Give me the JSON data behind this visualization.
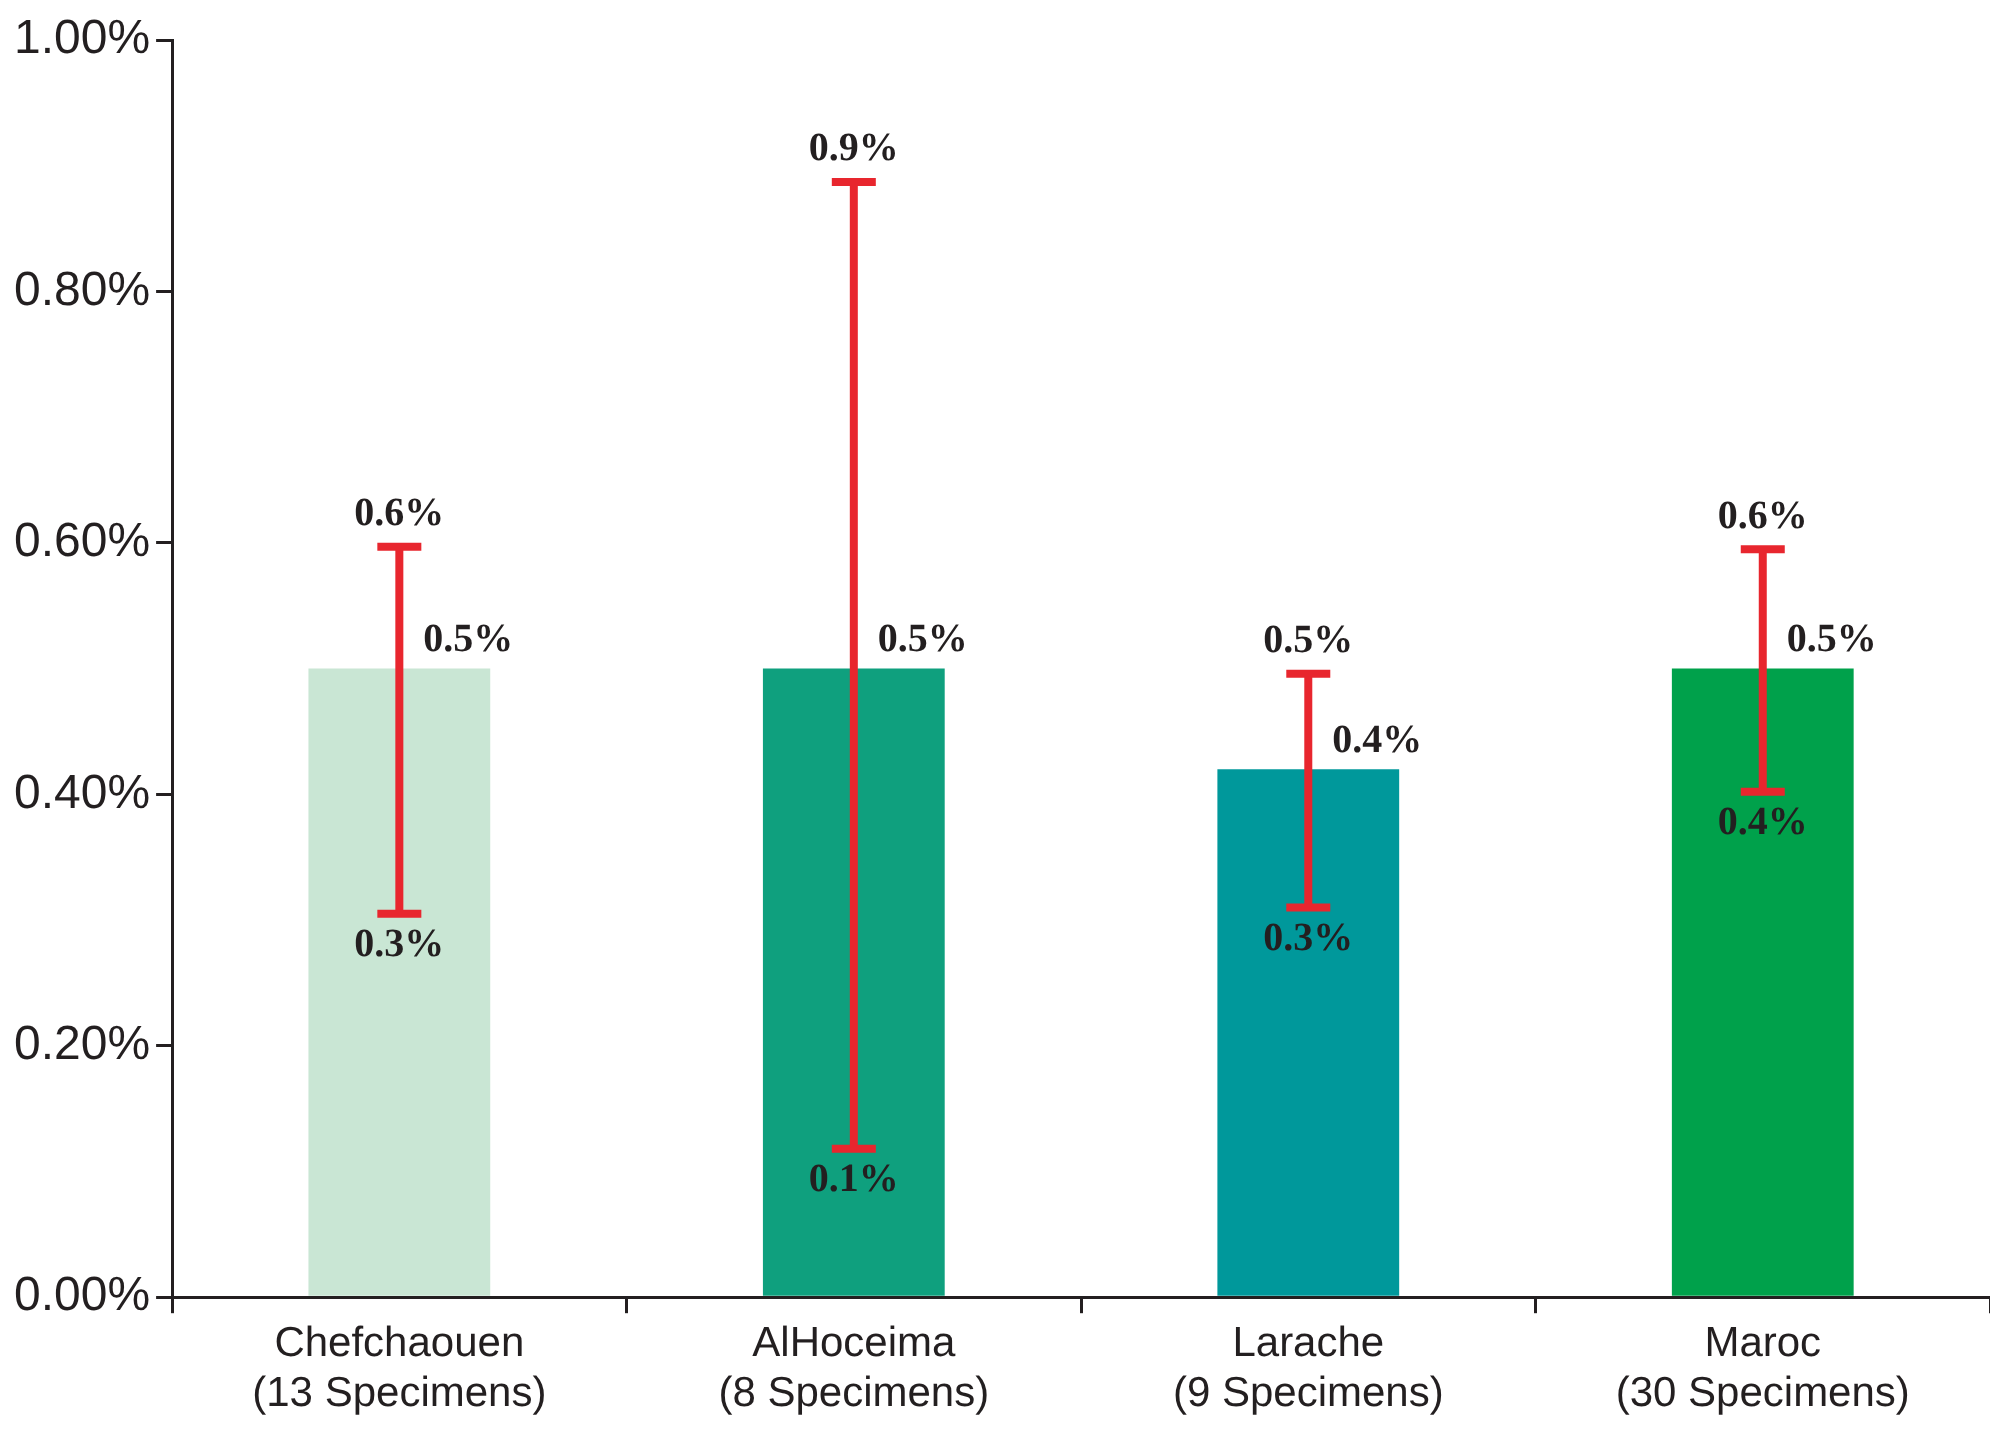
{
  "chart_data": {
    "type": "bar",
    "categories": [
      "Chefchaouen\n(13 Specimens)",
      "AlHoceima\n(8 Specimens)",
      "Larache\n(9 Specimens)",
      "Maroc\n(30 Specimens)"
    ],
    "values": [
      0.5,
      0.5,
      0.42,
      0.5
    ],
    "colors": [
      "#c9e6d4",
      "#0fa07e",
      "#00989b",
      "#00a14b"
    ],
    "value_labels": [
      "0.5%",
      "0.5%",
      "0.4%",
      "0.5%"
    ],
    "errors": [
      [
        0.305,
        0.597
      ],
      [
        0.118,
        0.887
      ],
      [
        0.31,
        0.496
      ],
      [
        0.402,
        0.595
      ]
    ],
    "ylim": [
      0,
      1
    ],
    "yticks": [
      {
        "value": 0,
        "label": "0.00%"
      },
      {
        "value": 0.2,
        "label": "0.20%"
      },
      {
        "value": 0.4,
        "label": "0.40%"
      },
      {
        "value": 0.6,
        "label": "0.60%"
      },
      {
        "value": 0.8,
        "label": "0.80%"
      },
      {
        "value": 1,
        "label": "1.00%"
      }
    ],
    "annotations": [
      {
        "text": "0.6%",
        "x": "Chefchaouen\n(13 Specimens)",
        "y": 0.597
      },
      {
        "text": "0.3%",
        "x": "Chefchaouen\n(13 Specimens)",
        "y": 0.305
      },
      {
        "text": "0.9%",
        "x": "AlHoceima\n(8 Specimens)",
        "y": 0.887
      },
      {
        "text": "0.1%",
        "x": "AlHoceima\n(8 Specimens)",
        "y": 0.118
      },
      {
        "text": "0.5%",
        "x": "Larache\n(9 Specimens)",
        "y": 0.496
      },
      {
        "text": "0.3%",
        "x": "Larache\n(9 Specimens)",
        "y": 0.31
      },
      {
        "text": "0.6%",
        "x": "Maroc\n(30 Specimens)",
        "y": 0.595
      },
      {
        "text": "0.4%",
        "x": "Maroc\n(30 Specimens)",
        "y": 0.402
      }
    ],
    "grid": false,
    "legend": false
  }
}
